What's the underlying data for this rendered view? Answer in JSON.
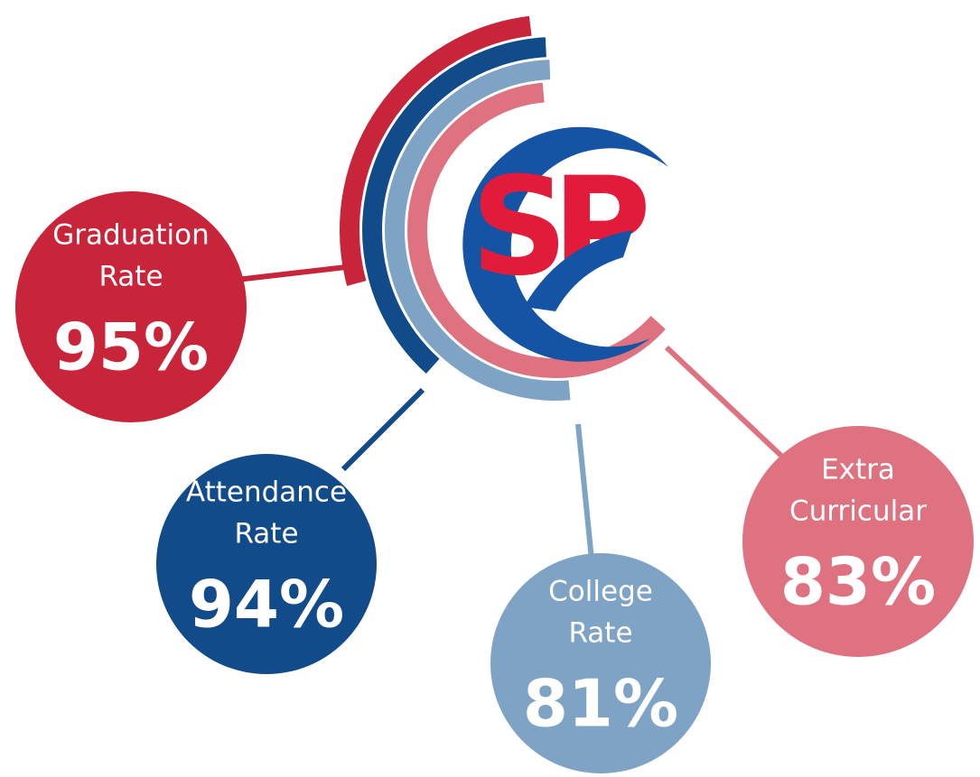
{
  "logo": "SP",
  "items": [
    {
      "label": [
        "Graduation",
        "Rate"
      ],
      "value": "95%"
    },
    {
      "label": [
        "Attendance",
        "Rate"
      ],
      "value": "94%"
    },
    {
      "label": [
        "College",
        "Rate"
      ],
      "value": "81%"
    },
    {
      "label": [
        "Extra",
        "Curricular"
      ],
      "value": "83%"
    }
  ]
}
